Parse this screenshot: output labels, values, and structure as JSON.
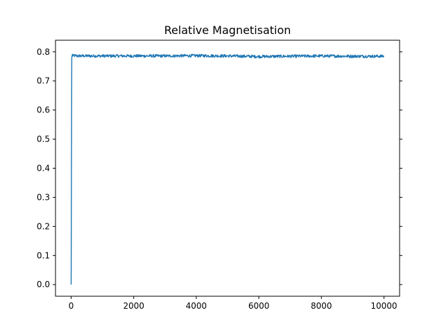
{
  "chart_data": {
    "type": "line",
    "title": "Relative Magnetisation",
    "xlabel": "",
    "ylabel": "",
    "xlim": [
      -500,
      10500
    ],
    "ylim": [
      -0.04,
      0.84
    ],
    "x_ticks": [
      0,
      2000,
      4000,
      6000,
      8000,
      10000
    ],
    "x_tick_labels": [
      "0",
      "2000",
      "4000",
      "6000",
      "8000",
      "10000"
    ],
    "y_ticks": [
      0.0,
      0.1,
      0.2,
      0.3,
      0.4,
      0.5,
      0.6,
      0.7,
      0.8
    ],
    "y_tick_labels": [
      "0.0",
      "0.1",
      "0.2",
      "0.3",
      "0.4",
      "0.5",
      "0.6",
      "0.7",
      "0.8"
    ],
    "grid": false,
    "series": [
      {
        "color": "#1f77b4",
        "x": [
          0,
          20,
          40,
          60,
          100,
          200,
          500,
          1000,
          2000,
          3000,
          4000,
          5000,
          6000,
          7000,
          8000,
          9000,
          10000
        ],
        "y": [
          0.0,
          0.78,
          0.79,
          0.786,
          0.787,
          0.786,
          0.786,
          0.786,
          0.786,
          0.786,
          0.787,
          0.786,
          0.784,
          0.785,
          0.786,
          0.785,
          0.785
        ],
        "noise_band": 0.005
      }
    ]
  }
}
